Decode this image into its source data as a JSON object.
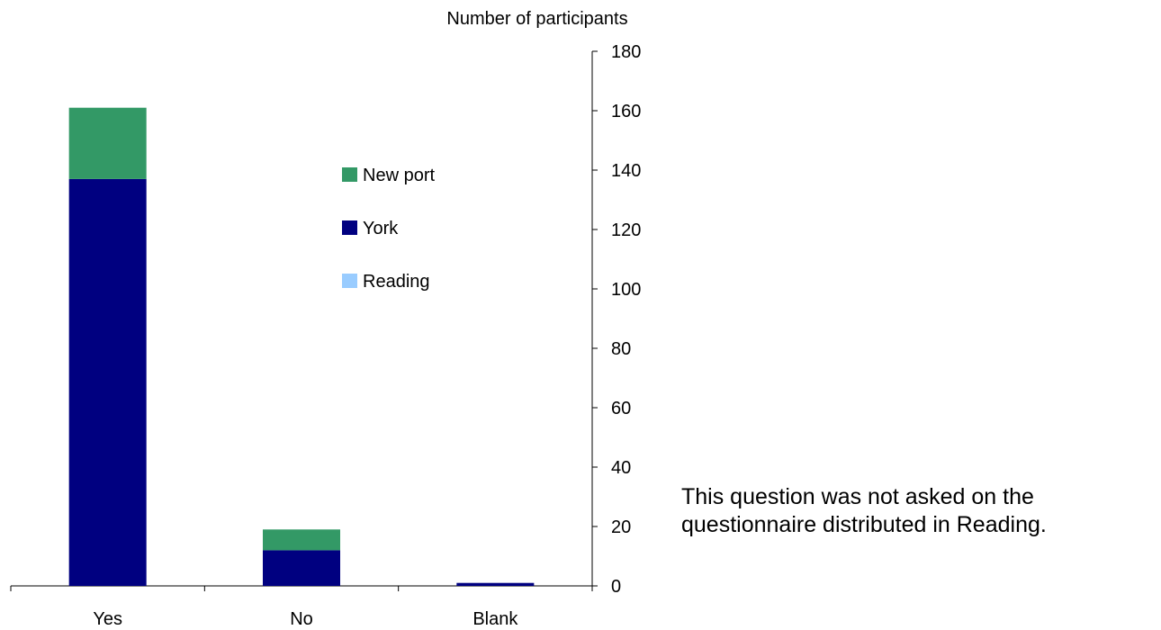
{
  "chart_data": {
    "type": "bar",
    "stacked": true,
    "categories": [
      "Yes",
      "No",
      "Blank"
    ],
    "series": [
      {
        "name": "Reading",
        "values": [
          0,
          0,
          0
        ],
        "color": "#99ccff"
      },
      {
        "name": "York",
        "values": [
          137,
          12,
          1
        ],
        "color": "#000080"
      },
      {
        "name": "New port",
        "values": [
          24,
          7,
          0
        ],
        "color": "#339966"
      }
    ],
    "legend_order": [
      "New port",
      "York",
      "Reading"
    ],
    "legend_position": "inside, center",
    "ylabel": "Number of participants",
    "y_axis_side": "right",
    "ylim": [
      0,
      180
    ],
    "yticks": [
      0,
      20,
      40,
      60,
      80,
      100,
      120,
      140,
      160,
      180
    ],
    "grid": false
  },
  "note": {
    "line1": "This question was not asked on the",
    "line2": "questionnaire distributed in Reading."
  }
}
